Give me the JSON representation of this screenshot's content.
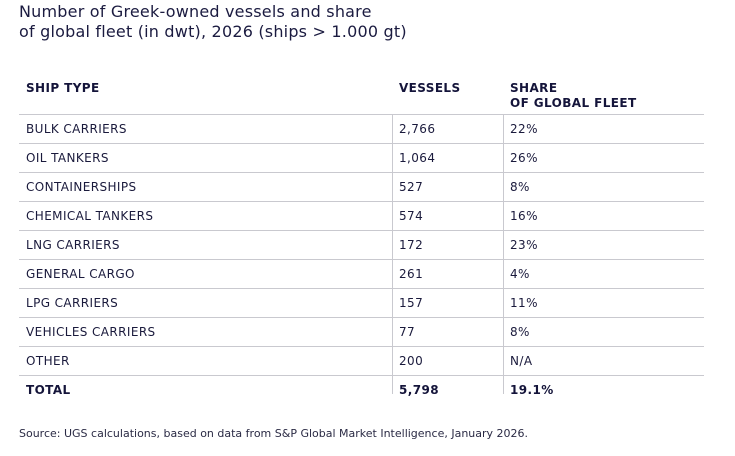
{
  "title": {
    "line1": "Number of Greek-owned vessels and share",
    "line2": "of global fleet (in dwt), 2026 (ships > 1.000 gt)"
  },
  "table": {
    "headers": {
      "ship_type": "SHIP TYPE",
      "vessels": "VESSELS",
      "share_line1": "SHARE",
      "share_line2": "OF GLOBAL FLEET"
    },
    "rows": [
      {
        "type": "BULK CARRIERS",
        "vessels": "2,766",
        "share": "22%"
      },
      {
        "type": "OIL TANKERS",
        "vessels": "1,064",
        "share": "26%"
      },
      {
        "type": "CONTAINERSHIPS",
        "vessels": "527",
        "share": "8%"
      },
      {
        "type": "CHEMICAL TANKERS",
        "vessels": "574",
        "share": "16%"
      },
      {
        "type": "LNG CARRIERS",
        "vessels": "172",
        "share": "23%"
      },
      {
        "type": "GENERAL CARGO",
        "vessels": "261",
        "share": "4%"
      },
      {
        "type": "LPG CARRIERS",
        "vessels": "157",
        "share": "11%"
      },
      {
        "type": "VEHICLES CARRIERS",
        "vessels": "77",
        "share": "8%"
      },
      {
        "type": "OTHER",
        "vessels": "200",
        "share": "N/A"
      }
    ],
    "total": {
      "type": "TOTAL",
      "vessels": "5,798",
      "share": "19.1%"
    }
  },
  "source": "Source: UGS calculations, based on data from S&P Global Market Intelligence, January 2026."
}
